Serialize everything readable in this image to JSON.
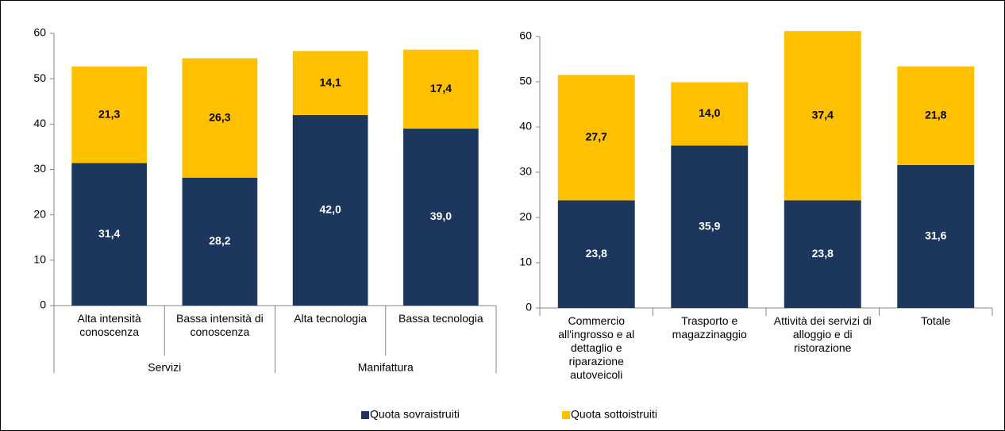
{
  "chart_data": [
    {
      "type": "bar",
      "stacked": true,
      "categories": [
        "Alta intensità conoscenza",
        "Bassa intensità di conoscenza",
        "Alta tecnologia",
        "Bassa tecnologia"
      ],
      "groups": [
        {
          "label": "Servizi",
          "count": 2
        },
        {
          "label": "Manifattura",
          "count": 2
        }
      ],
      "series": [
        {
          "color": "#1c365e",
          "values": [
            31.4,
            28.2,
            42.0,
            39.0
          ],
          "value_labels": [
            "31,4",
            "28,2",
            "42,0",
            "39,0"
          ]
        },
        {
          "color": "#ffc000",
          "values": [
            21.3,
            26.3,
            14.1,
            17.4
          ],
          "value_labels": [
            "21,3",
            "26,3",
            "14,1",
            "17,4"
          ]
        }
      ],
      "ylim": [
        0,
        60
      ],
      "yticks": [
        0,
        10,
        20,
        30,
        40,
        50,
        60
      ]
    },
    {
      "type": "bar",
      "stacked": true,
      "categories": [
        "Commercio all'ingrosso e al dettaglio e riparazione autoveicoli",
        "Trasporto e magazzinaggio",
        "Attività dei servizi di alloggio e di ristorazione",
        "Totale"
      ],
      "series": [
        {
          "name": "Quota sovraistruiti",
          "color": "#1c365e",
          "values": [
            23.8,
            35.9,
            23.8,
            31.6
          ],
          "value_labels": [
            "23,8",
            "35,9",
            "23,8",
            "31,6"
          ]
        },
        {
          "name": "Quota sottoistruiti",
          "color": "#ffc000",
          "values": [
            27.7,
            14.0,
            37.4,
            21.8
          ],
          "value_labels": [
            "27,7",
            "14,0",
            "37,4",
            "21,8"
          ]
        }
      ],
      "ylim": [
        0,
        60
      ],
      "yticks": [
        0,
        10,
        20,
        30,
        40,
        50,
        60
      ]
    }
  ]
}
